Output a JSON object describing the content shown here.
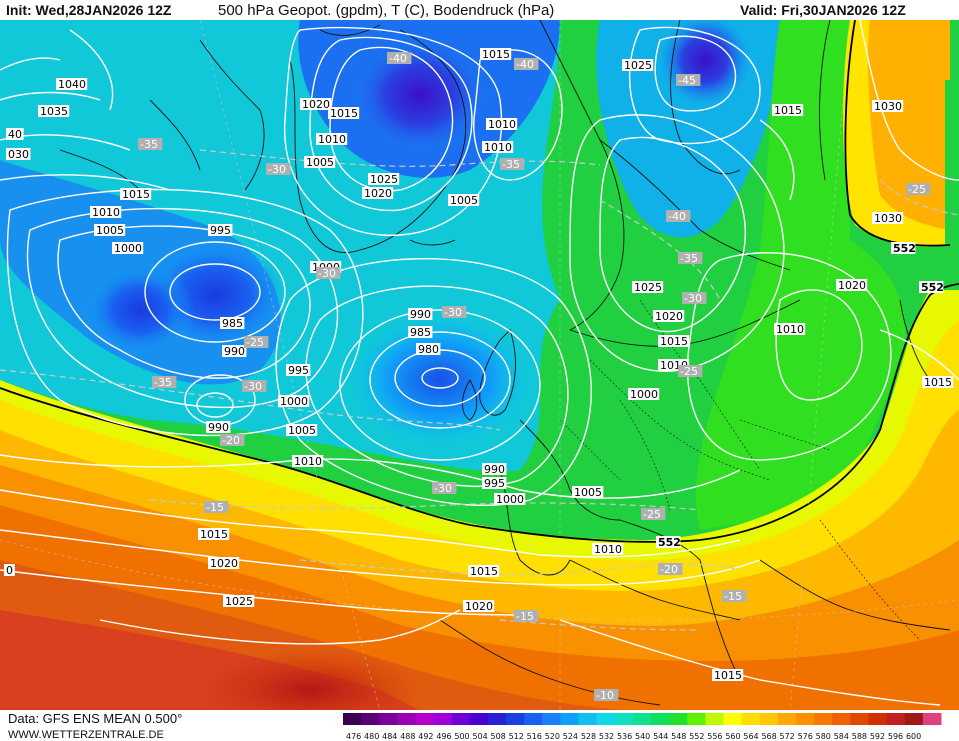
{
  "header": {
    "init": "Init: Wed,28JAN2026 12Z",
    "title": "500 hPa Geopot. (gpdm), T (C), Bodendruck (hPa)",
    "valid": "Valid: Fri,30JAN2026 12Z"
  },
  "footer": {
    "data_source": "Data: GFS ENS MEAN 0.500°",
    "website": "WWW.WETTERZENTRALE.DE"
  },
  "colorbar": {
    "labels": [
      "476",
      "480",
      "484",
      "488",
      "492",
      "496",
      "500",
      "504",
      "508",
      "512",
      "516",
      "520",
      "524",
      "528",
      "532",
      "536",
      "540",
      "544",
      "548",
      "552",
      "556",
      "560",
      "564",
      "568",
      "572",
      "576",
      "580",
      "584",
      "588",
      "592",
      "596",
      "600"
    ],
    "colors": [
      "#3a0050",
      "#5a0078",
      "#7a0096",
      "#9a00b4",
      "#b400c8",
      "#a000d8",
      "#7000d8",
      "#4a00d0",
      "#2a20d0",
      "#1a40e0",
      "#1a60f0",
      "#1a80f8",
      "#10a0f8",
      "#10c0f0",
      "#10d8e8",
      "#10e0c0",
      "#10e090",
      "#10e060",
      "#20e030",
      "#60f000",
      "#c0f800",
      "#ffff00",
      "#ffe000",
      "#ffc800",
      "#ffa800",
      "#ff9000",
      "#f87800",
      "#f06000",
      "#e04800",
      "#d03000",
      "#c02020",
      "#a01818",
      "#e04080"
    ]
  },
  "pressure_labels": [
    {
      "v": "1040"
    },
    {
      "v": "1035"
    },
    {
      "v": "030"
    },
    {
      "v": "40"
    },
    {
      "v": "1015"
    },
    {
      "v": "1010"
    },
    {
      "v": "1005"
    },
    {
      "v": "1000"
    },
    {
      "v": "995"
    },
    {
      "v": "985"
    },
    {
      "v": "990"
    },
    {
      "v": "995"
    },
    {
      "v": "1000"
    },
    {
      "v": "1005"
    },
    {
      "v": "1010"
    },
    {
      "v": "990"
    },
    {
      "v": "1015"
    },
    {
      "v": "1020"
    },
    {
      "v": "1025"
    },
    {
      "v": "0"
    },
    {
      "v": "1020"
    },
    {
      "v": "1015"
    },
    {
      "v": "1010"
    },
    {
      "v": "1005"
    },
    {
      "v": "1020"
    },
    {
      "v": "1025"
    },
    {
      "v": "1000"
    },
    {
      "v": "1015"
    },
    {
      "v": "1020"
    },
    {
      "v": "990"
    },
    {
      "v": "985"
    },
    {
      "v": "980"
    },
    {
      "v": "990"
    },
    {
      "v": "995"
    },
    {
      "v": "1000"
    },
    {
      "v": "1005"
    },
    {
      "v": "1010"
    },
    {
      "v": "1015"
    },
    {
      "v": "1020"
    },
    {
      "v": "1025"
    },
    {
      "v": "1010"
    },
    {
      "v": "1005"
    },
    {
      "v": "1015"
    },
    {
      "v": "1010"
    },
    {
      "v": "1025"
    },
    {
      "v": "1030"
    },
    {
      "v": "1015"
    },
    {
      "v": "1030"
    },
    {
      "v": "1020"
    },
    {
      "v": "1010"
    },
    {
      "v": "1000"
    },
    {
      "v": "1015"
    },
    {
      "v": "1015"
    },
    {
      "v": "1005"
    },
    {
      "v": "1010"
    }
  ],
  "temp_labels": [
    {
      "v": "-40"
    },
    {
      "v": "-40"
    },
    {
      "v": "-45"
    },
    {
      "v": "-35"
    },
    {
      "v": "-30"
    },
    {
      "v": "-35"
    },
    {
      "v": "-30"
    },
    {
      "v": "-30"
    },
    {
      "v": "-30"
    },
    {
      "v": "-25"
    },
    {
      "v": "-35"
    },
    {
      "v": "-20"
    },
    {
      "v": "-15"
    },
    {
      "v": "-30"
    },
    {
      "v": "-40"
    },
    {
      "v": "-35"
    },
    {
      "v": "-30"
    },
    {
      "v": "-25"
    },
    {
      "v": "-25"
    },
    {
      "v": "-20"
    },
    {
      "v": "-15"
    },
    {
      "v": "-15"
    },
    {
      "v": "-10"
    },
    {
      "v": "-25"
    }
  ],
  "geopot_labels": [
    {
      "v": "552"
    },
    {
      "v": "552"
    },
    {
      "v": "552"
    }
  ]
}
